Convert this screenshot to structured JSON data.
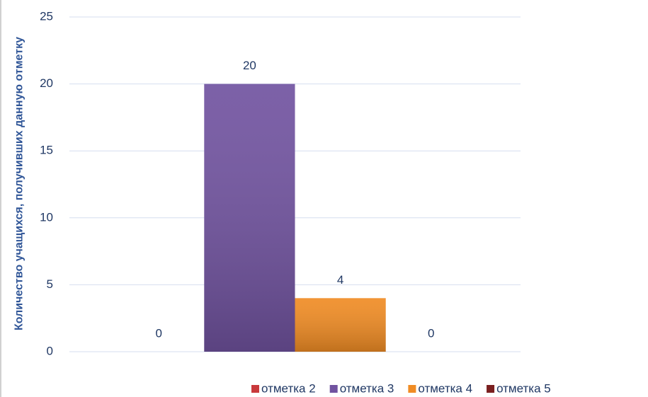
{
  "chart_data": {
    "type": "bar",
    "y_label": "Количество учащихся, получивших данную отметку",
    "categories": [
      null
    ],
    "series": [
      {
        "name": "отметка 2",
        "color": "#c9393b",
        "values": [
          0
        ]
      },
      {
        "name": "отметка 3",
        "color": "#7153a0",
        "values": [
          20
        ]
      },
      {
        "name": "отметка 4",
        "color": "#f08c24",
        "values": [
          4
        ]
      },
      {
        "name": "отметка 5",
        "color": "#7a1f1f",
        "values": [
          0
        ]
      }
    ],
    "ylim": [
      0,
      25
    ],
    "yticks": [
      0,
      5,
      10,
      15,
      20,
      25
    ],
    "grid": true,
    "legend": "bottom"
  }
}
